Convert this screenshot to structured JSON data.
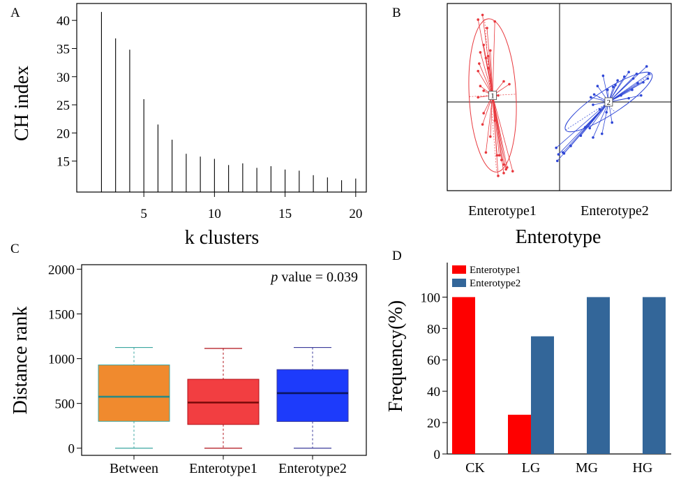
{
  "panels": {
    "A": "A",
    "B": "B",
    "C": "C",
    "D": "D"
  },
  "chart_data": [
    {
      "panel": "A",
      "type": "bar",
      "xlabel": "k clusters",
      "ylabel": "CH index",
      "x": [
        2,
        3,
        4,
        5,
        6,
        7,
        8,
        9,
        10,
        11,
        12,
        13,
        14,
        15,
        16,
        17,
        18,
        19,
        20
      ],
      "values": [
        41.5,
        36.8,
        34.8,
        26.0,
        21.5,
        18.8,
        16.3,
        15.8,
        15.4,
        14.3,
        14.6,
        13.8,
        14.1,
        13.5,
        13.3,
        12.5,
        12.1,
        11.6,
        11.9
      ],
      "xticks": [
        5,
        10,
        15,
        20
      ],
      "yticks": [
        15,
        20,
        25,
        30,
        35,
        40
      ],
      "xlim": [
        0.25,
        20.75
      ],
      "ylim": [
        9.5,
        43
      ]
    },
    {
      "panel": "B",
      "type": "scatter",
      "xlabel": "Enterotype",
      "group_labels": [
        "Enterotype1",
        "Enterotype2"
      ],
      "colors": [
        "#e8383d",
        "#2e46d6"
      ],
      "xlim": [
        -1,
        1
      ],
      "ylim": [
        -1,
        1
      ],
      "groups": [
        {
          "name": "Enterotype1",
          "centroid_label": "1",
          "centroid": [
            -0.6,
            0.07
          ],
          "ellipse": {
            "rx": 0.21,
            "ry": 0.82,
            "angle_deg": -3
          },
          "points": [
            [
              -0.69,
              0.93
            ],
            [
              -0.73,
              0.88
            ],
            [
              -0.58,
              0.86
            ],
            [
              -0.65,
              0.79
            ],
            [
              -0.62,
              0.55
            ],
            [
              -0.71,
              0.53
            ],
            [
              -0.64,
              0.49
            ],
            [
              -0.66,
              0.47
            ],
            [
              -0.72,
              0.41
            ],
            [
              -0.73,
              0.33
            ],
            [
              -0.64,
              0.36
            ],
            [
              -0.5,
              0.22
            ],
            [
              -0.45,
              0.19
            ],
            [
              -0.71,
              0.17
            ],
            [
              -0.68,
              0.12
            ],
            [
              -0.73,
              0.05
            ],
            [
              -0.68,
              -0.12
            ],
            [
              -0.69,
              -0.24
            ],
            [
              -0.66,
              -0.54
            ],
            [
              -0.56,
              -0.57
            ],
            [
              -0.54,
              -0.57
            ],
            [
              -0.52,
              -0.62
            ],
            [
              -0.5,
              -0.67
            ],
            [
              -0.5,
              -0.76
            ],
            [
              -0.48,
              -0.72
            ],
            [
              -0.62,
              -0.37
            ],
            [
              -0.58,
              -0.2
            ],
            [
              -0.47,
              -0.7
            ],
            [
              -0.55,
              -0.79
            ],
            [
              -0.42,
              -0.74
            ],
            [
              -0.68,
              0.61
            ],
            [
              -0.55,
              0.07
            ]
          ]
        },
        {
          "name": "Enterotype2",
          "centroid_label": "2",
          "centroid": [
            0.44,
            0.0
          ],
          "ellipse": {
            "rx": 0.46,
            "ry": 0.13,
            "angle_deg": -33
          },
          "points": [
            [
              0.78,
              0.38
            ],
            [
              0.8,
              0.3
            ],
            [
              0.79,
              0.25
            ],
            [
              0.75,
              0.21
            ],
            [
              0.7,
              0.2
            ],
            [
              0.69,
              0.3
            ],
            [
              0.66,
              0.25
            ],
            [
              0.62,
              0.32
            ],
            [
              0.58,
              0.27
            ],
            [
              0.52,
              0.23
            ],
            [
              0.5,
              0.18
            ],
            [
              0.48,
              0.16
            ],
            [
              0.43,
              0.13
            ],
            [
              0.39,
              0.28
            ],
            [
              0.34,
              0.17
            ],
            [
              0.31,
              0.08
            ],
            [
              0.28,
              0.05
            ],
            [
              0.3,
              -0.03
            ],
            [
              0.36,
              -0.08
            ],
            [
              0.42,
              -0.11
            ],
            [
              0.47,
              -0.22
            ],
            [
              0.38,
              -0.34
            ],
            [
              0.3,
              -0.38
            ],
            [
              0.27,
              -0.28
            ],
            [
              0.23,
              -0.27
            ],
            [
              0.19,
              -0.36
            ],
            [
              0.1,
              -0.47
            ],
            [
              0.04,
              -0.55
            ],
            [
              -0.03,
              -0.49
            ],
            [
              -0.02,
              -0.63
            ],
            [
              -0.01,
              -0.56
            ],
            [
              0.03,
              -0.54
            ],
            [
              0.62,
              0.04
            ],
            [
              0.55,
              0.07
            ],
            [
              0.65,
              0.13
            ],
            [
              0.73,
              0.07
            ]
          ]
        }
      ]
    },
    {
      "panel": "C",
      "type": "box",
      "ylabel": "Distance rank",
      "annotation_italic": "p",
      "annotation_rest": " value = 0.039",
      "categories": [
        "Between",
        "Enterotype1",
        "Enterotype2"
      ],
      "colors": [
        "#f08a2e",
        "#f23e41",
        "#1d3bfb"
      ],
      "median_colors": [
        "#2a8a85",
        "#7a0a0a",
        "#0b1560"
      ],
      "whisker_colors": [
        "#3aa6a0",
        "#b0101a",
        "#3a3a9a"
      ],
      "boxes": [
        {
          "min": 0,
          "q1": 300,
          "median": 575,
          "q3": 930,
          "max": 1125
        },
        {
          "min": 0,
          "q1": 265,
          "median": 510,
          "q3": 770,
          "max": 1115
        },
        {
          "min": 0,
          "q1": 298,
          "median": 615,
          "q3": 878,
          "max": 1125
        }
      ],
      "yticks": [
        0,
        500,
        1000,
        1500,
        2000
      ],
      "ylim": [
        -80,
        2050
      ]
    },
    {
      "panel": "D",
      "type": "bar",
      "ylabel": "Frequency(%)",
      "categories": [
        "CK",
        "LG",
        "MG",
        "HG"
      ],
      "series": [
        {
          "name": "Enterotype1",
          "color": "#fe0000",
          "values": [
            100,
            25,
            0,
            0
          ]
        },
        {
          "name": "Enterotype2",
          "color": "#336699",
          "values": [
            0,
            75,
            100,
            100
          ]
        }
      ],
      "yticks": [
        0,
        20,
        40,
        60,
        80,
        100
      ],
      "ylim": [
        0,
        122
      ],
      "legend": "top-left"
    }
  ]
}
